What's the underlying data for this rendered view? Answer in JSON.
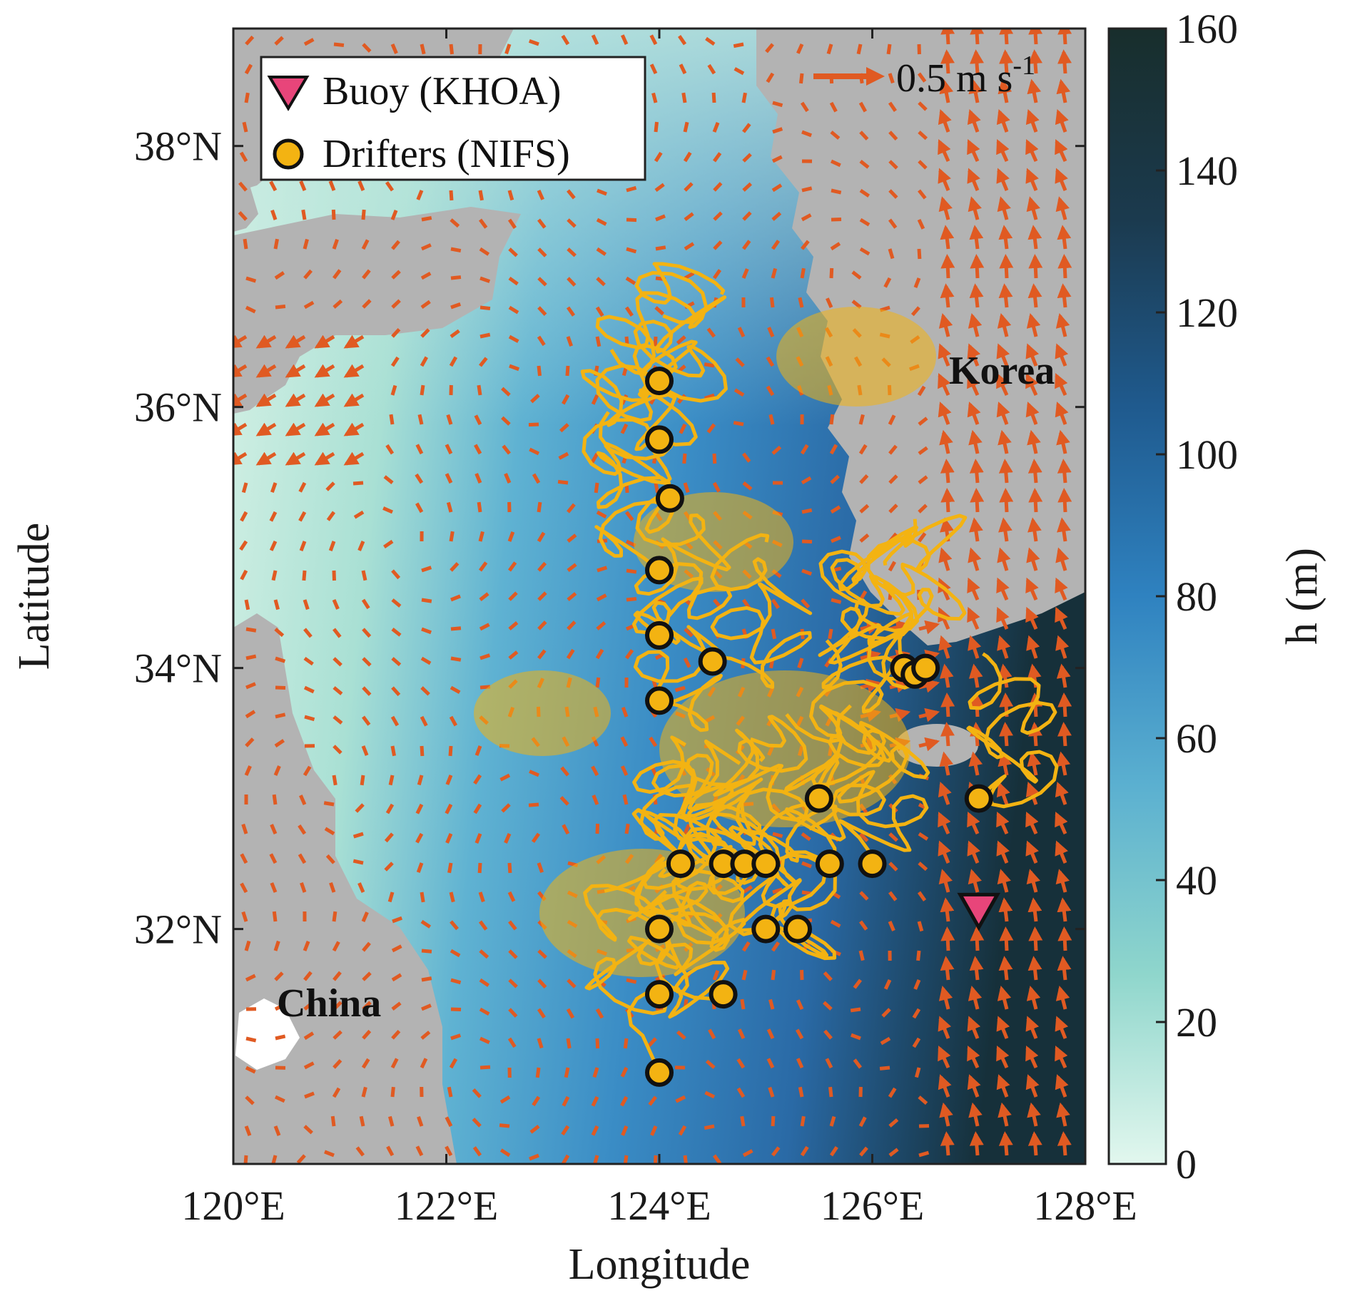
{
  "map": {
    "lon_range": [
      120,
      128
    ],
    "lat_range": [
      30.2,
      38.9
    ],
    "x_ticks": [
      {
        "value": 120,
        "label": "120°E"
      },
      {
        "value": 122,
        "label": "122°E"
      },
      {
        "value": 124,
        "label": "124°E"
      },
      {
        "value": 126,
        "label": "126°E"
      },
      {
        "value": 128,
        "label": "128°E"
      }
    ],
    "y_ticks": [
      {
        "value": 32,
        "label": "32°N"
      },
      {
        "value": 34,
        "label": "34°N"
      },
      {
        "value": 36,
        "label": "36°N"
      },
      {
        "value": 38,
        "label": "38°N"
      }
    ],
    "xlabel": "Longitude",
    "ylabel": "Latitude",
    "regions": {
      "korea": "Korea",
      "china": "China"
    },
    "land_color": "#b3b3b3",
    "vector_color": "#e05a22",
    "drifter_color": "#f3b312",
    "buoy_color": "#e8457a"
  },
  "legend": {
    "buoy": "Buoy (KHOA)",
    "drifters": "Drifters (NIFS)"
  },
  "scale_arrow": {
    "text_main": "0.5 m s",
    "text_sup": "-1"
  },
  "colorbar": {
    "label": "h (m)",
    "range": [
      0,
      160
    ],
    "ticks": [
      "0",
      "20",
      "40",
      "60",
      "80",
      "100",
      "120",
      "140",
      "160"
    ],
    "colors": [
      "#e2f7ee",
      "#8fd6cc",
      "#5bb0d0",
      "#2f82c0",
      "#1f5a8e",
      "#1b3a4e",
      "#182e2c"
    ]
  },
  "buoy": {
    "lon": 127.0,
    "lat": 32.1
  },
  "drifters": [
    {
      "lon": 124.0,
      "lat": 36.2
    },
    {
      "lon": 124.0,
      "lat": 35.75
    },
    {
      "lon": 124.1,
      "lat": 35.3
    },
    {
      "lon": 124.0,
      "lat": 34.75
    },
    {
      "lon": 124.0,
      "lat": 34.25
    },
    {
      "lon": 124.5,
      "lat": 34.05
    },
    {
      "lon": 124.0,
      "lat": 33.75
    },
    {
      "lon": 126.3,
      "lat": 34.0
    },
    {
      "lon": 126.4,
      "lat": 33.95
    },
    {
      "lon": 126.5,
      "lat": 34.0
    },
    {
      "lon": 125.5,
      "lat": 33.0
    },
    {
      "lon": 127.0,
      "lat": 33.0
    },
    {
      "lon": 124.2,
      "lat": 32.5
    },
    {
      "lon": 124.6,
      "lat": 32.5
    },
    {
      "lon": 124.8,
      "lat": 32.5
    },
    {
      "lon": 125.0,
      "lat": 32.5
    },
    {
      "lon": 125.6,
      "lat": 32.5
    },
    {
      "lon": 126.0,
      "lat": 32.5
    },
    {
      "lon": 124.0,
      "lat": 32.0
    },
    {
      "lon": 125.0,
      "lat": 32.0
    },
    {
      "lon": 125.3,
      "lat": 32.0
    },
    {
      "lon": 124.0,
      "lat": 31.5
    },
    {
      "lon": 124.6,
      "lat": 31.5
    },
    {
      "lon": 124.0,
      "lat": 30.9
    }
  ]
}
